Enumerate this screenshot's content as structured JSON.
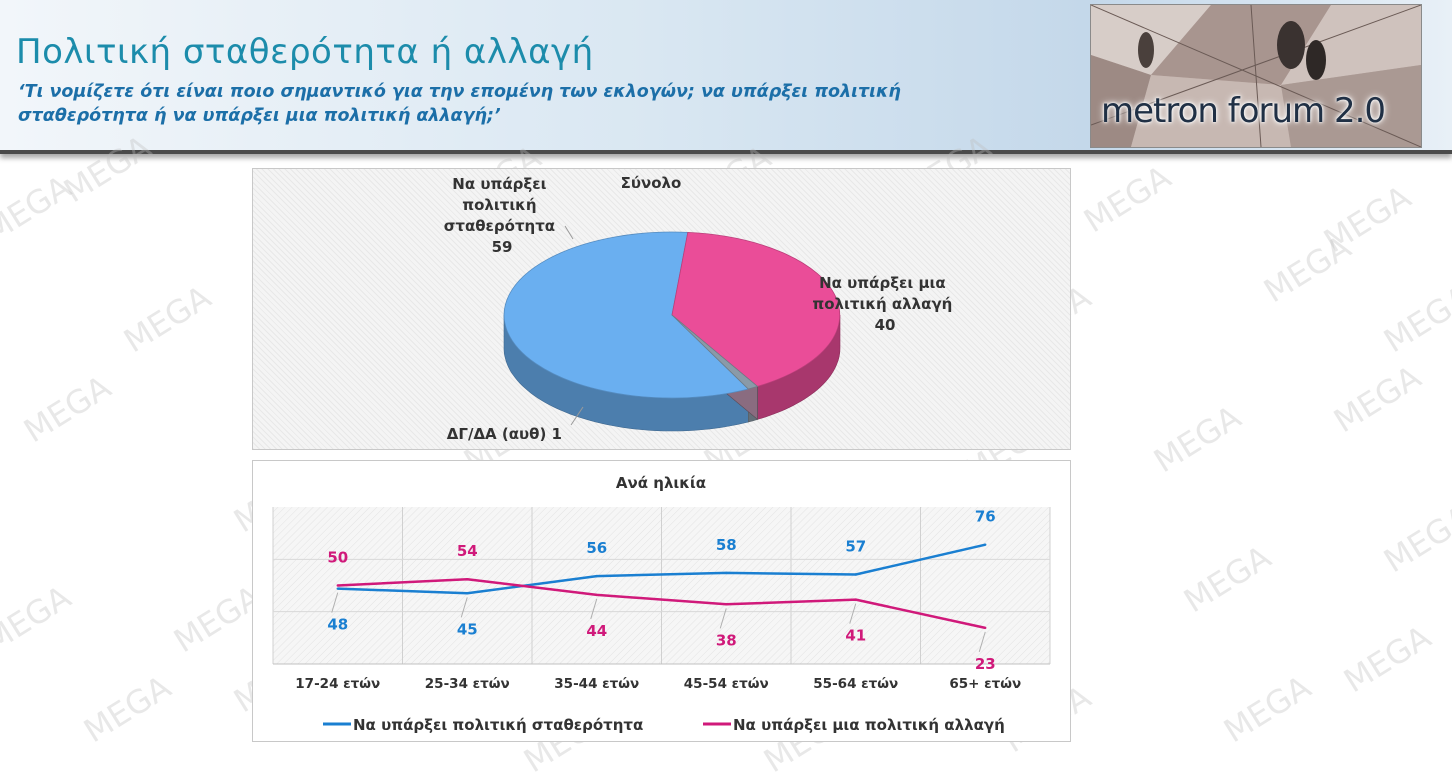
{
  "header": {
    "title": "Πολιτική σταθερότητα ή αλλαγή",
    "subtitle": "‘Τι νομίζετε ότι είναι ποιο σημαντικό για την επομένη των εκλογών; να υπάρξει πολιτική σταθερότητα ή να υπάρξει μια πολιτική αλλαγή;’",
    "logo_text": "metron forum 2.0"
  },
  "watermark_text": "MEGA",
  "colors": {
    "stability": "#1a7fd1",
    "change": "#d0197a",
    "pie_stability": "#6aaff0",
    "pie_change": "#ea4d98",
    "pie_dk": "#8a9aa8",
    "title": "#1c8cab"
  },
  "chart_data": [
    {
      "type": "pie",
      "title": "Σύνολο",
      "slices": [
        {
          "label": "Να υπάρξει πολιτική σταθερότητα",
          "value": 59
        },
        {
          "label": "Να υπάρξει μια πολιτική αλλαγή",
          "value": 40
        },
        {
          "label": "ΔΓ/ΔΑ (αυθ)",
          "value": 1
        }
      ],
      "label_lines": {
        "stability": [
          "Να υπάρξει",
          "πολιτική",
          "σταθερότητα",
          "59"
        ],
        "change": [
          "Να υπάρξει μια",
          "πολιτική αλλαγή",
          "40"
        ],
        "dk": "ΔΓ/ΔΑ (αυθ) 1"
      }
    },
    {
      "type": "line",
      "title": "Ανά ηλικία",
      "categories": [
        "17-24 ετών",
        "25-34 ετών",
        "35-44 ετών",
        "45-54 ετών",
        "55-64 ετών",
        "65+ ετών"
      ],
      "series": [
        {
          "name": "Να υπάρξει πολιτική σταθερότητα",
          "values": [
            48,
            45,
            56,
            58,
            57,
            76
          ]
        },
        {
          "name": "Να υπάρξει μια πολιτική αλλαγή",
          "values": [
            50,
            54,
            44,
            38,
            41,
            23
          ]
        }
      ],
      "ylim": [
        0,
        100
      ],
      "grid": true,
      "legend_position": "bottom"
    }
  ]
}
